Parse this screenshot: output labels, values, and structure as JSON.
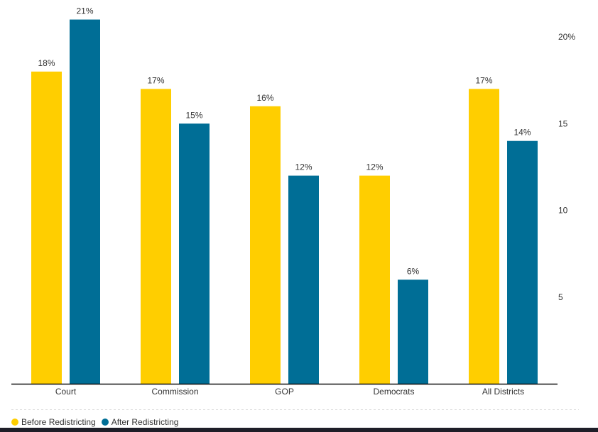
{
  "chart_data": {
    "type": "bar",
    "categories": [
      "Court",
      "Commission",
      "GOP",
      "Democrats",
      "All Districts"
    ],
    "series": [
      {
        "name": "Before Redistricting",
        "color": "#FFCE00",
        "values": [
          18,
          17,
          16,
          12,
          17
        ],
        "labels": [
          "18%",
          "17%",
          "16%",
          "12%",
          "17%"
        ]
      },
      {
        "name": "After Redistricting",
        "color": "#006E96",
        "values": [
          21,
          15,
          12,
          6,
          14
        ],
        "labels": [
          "21%",
          "15%",
          "12%",
          "6%",
          "14%"
        ]
      }
    ],
    "yticks": [
      5,
      10,
      15,
      20
    ],
    "ytick_labels": [
      "5",
      "10",
      "15",
      "20%"
    ],
    "ylim": [
      0,
      21
    ],
    "axis_position": "right",
    "legend_position": "bottom-left",
    "title": "",
    "xlabel": "",
    "ylabel": ""
  }
}
